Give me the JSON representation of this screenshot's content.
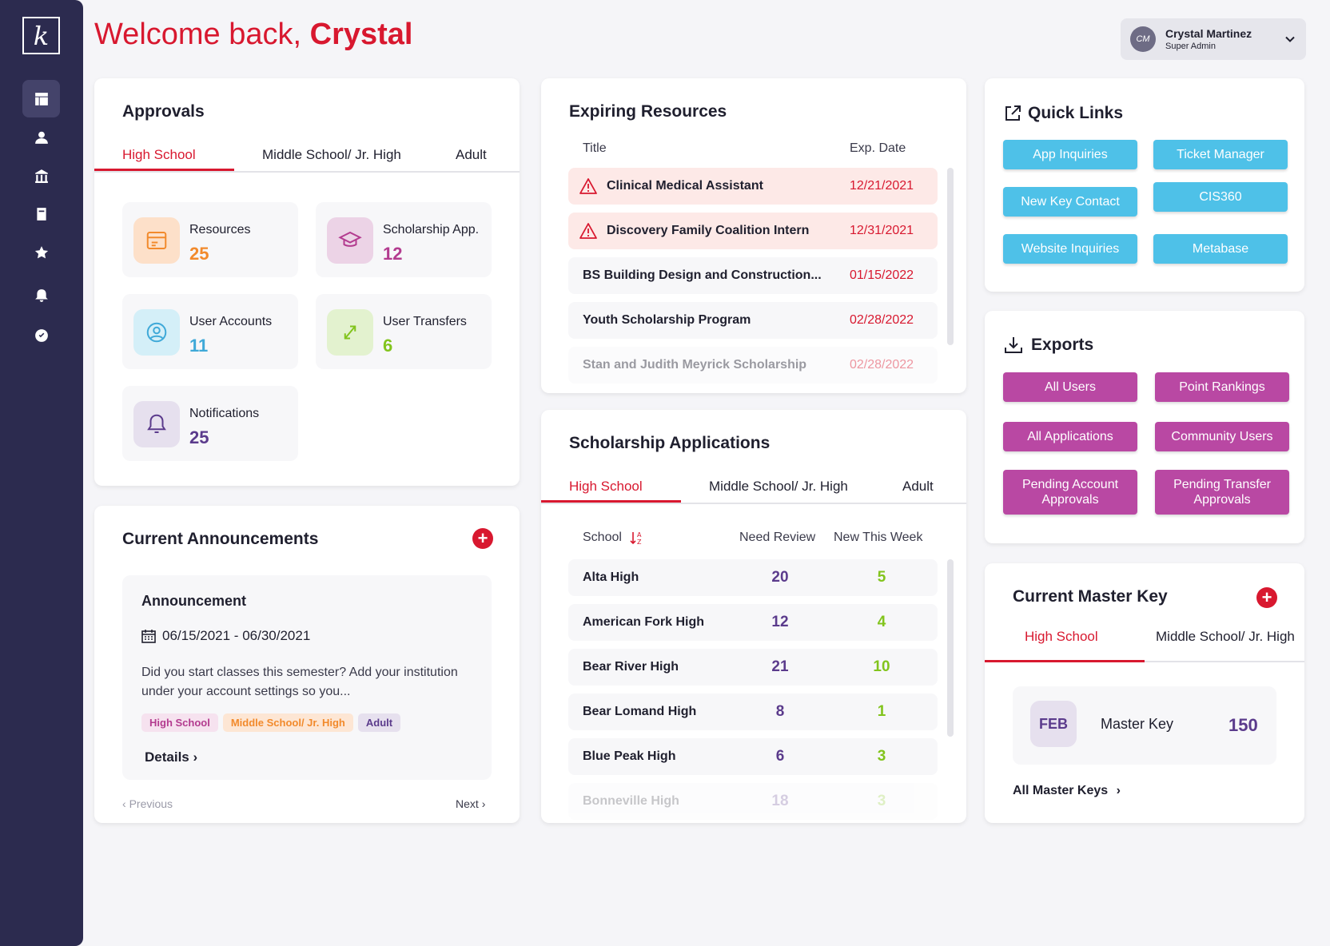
{
  "welcome": {
    "prefix": "Welcome back,",
    "name": "Crystal"
  },
  "user": {
    "initials": "CM",
    "name": "Crystal Martinez",
    "role": "Super Admin"
  },
  "logo": "k",
  "approvals": {
    "title": "Approvals",
    "tabs": [
      "High School",
      "Middle School/ Jr. High",
      "Adult"
    ],
    "stats": [
      {
        "label": "Resources",
        "value": "25"
      },
      {
        "label": "Scholarship App.",
        "value": "12"
      },
      {
        "label": "User Accounts",
        "value": "11"
      },
      {
        "label": "User Transfers",
        "value": "6"
      },
      {
        "label": "Notifications",
        "value": "25"
      }
    ]
  },
  "announcements": {
    "title": "Current Announcements",
    "item": {
      "title": "Announcement",
      "dates": "06/15/2021 - 06/30/2021",
      "body": "Did you start classes this semester? Add your institution under your account settings so you...",
      "tags": [
        "High School",
        "Middle School/ Jr. High",
        "Adult"
      ],
      "details": "Details"
    },
    "prev": "Previous",
    "next": "Next"
  },
  "expiring": {
    "title": "Expiring Resources",
    "col_title": "Title",
    "col_date": "Exp. Date",
    "rows": [
      {
        "title": "Clinical Medical Assistant",
        "date": "12/21/2021"
      },
      {
        "title": "Discovery Family Coalition Intern",
        "date": "12/31/2021"
      },
      {
        "title": "BS Building Design and Construction...",
        "date": "01/15/2022"
      },
      {
        "title": "Youth Scholarship Program",
        "date": "02/28/2022"
      },
      {
        "title": "Stan and Judith Meyrick Scholarship",
        "date": "02/28/2022"
      }
    ]
  },
  "scholarships": {
    "title": "Scholarship Applications",
    "tabs": [
      "High School",
      "Middle School/ Jr. High",
      "Adult"
    ],
    "col_school": "School",
    "col_review": "Need Review",
    "col_new": "New This Week",
    "rows": [
      {
        "school": "Alta High",
        "review": "20",
        "new": "5"
      },
      {
        "school": "American Fork High",
        "review": "12",
        "new": "4"
      },
      {
        "school": "Bear River High",
        "review": "21",
        "new": "10"
      },
      {
        "school": "Bear Lomand High",
        "review": "8",
        "new": "1"
      },
      {
        "school": "Blue Peak High",
        "review": "6",
        "new": "3"
      },
      {
        "school": "Bonneville High",
        "review": "18",
        "new": "3"
      }
    ]
  },
  "quick_links": {
    "title": "Quick Links",
    "links": [
      "App Inquiries",
      "Ticket Manager",
      "New Key Contact",
      "CIS360",
      "Website Inquiries",
      "Metabase"
    ]
  },
  "exports": {
    "title": "Exports",
    "items": [
      "All Users",
      "Point Rankings",
      "All Applications",
      "Community Users",
      "Pending Account Approvals",
      "Pending Transfer Approvals"
    ]
  },
  "master_key": {
    "title": "Current Master Key",
    "tabs": [
      "High School",
      "Middle School/ Jr. High"
    ],
    "month": "FEB",
    "label": "Master Key",
    "value": "150",
    "all_link": "All Master Keys"
  },
  "colors": {
    "red": "#d8182f",
    "orange": "#f28a2c",
    "pink": "#b33b8f",
    "blue": "#3fa9d8",
    "green": "#82c41d",
    "purple": "#5b3b8c"
  }
}
